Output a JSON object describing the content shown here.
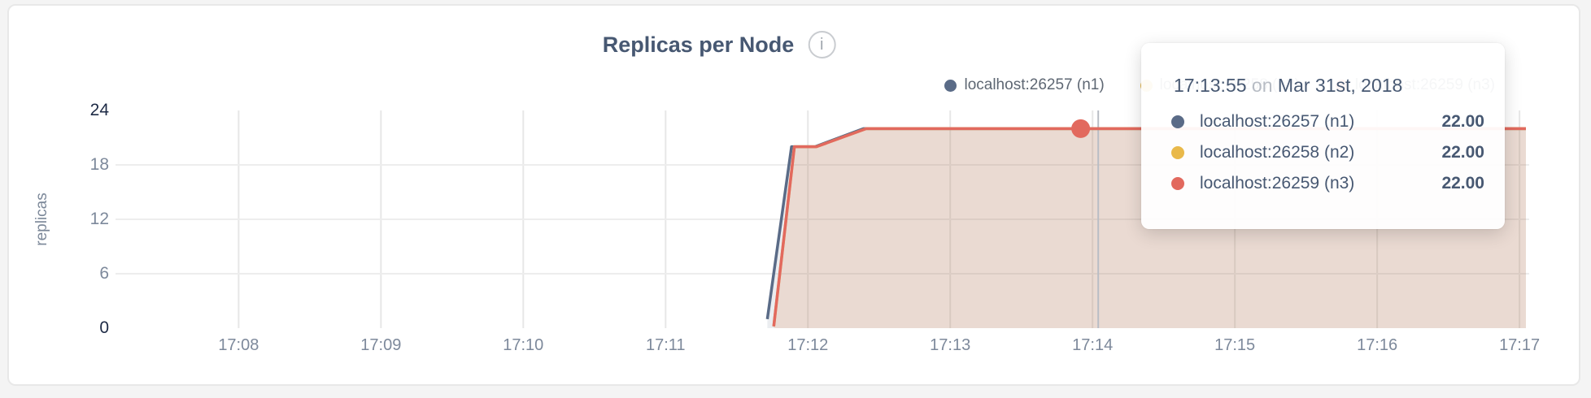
{
  "header": {
    "info_glyph": "i"
  },
  "chart_data": {
    "type": "area",
    "title": "Replicas per Node",
    "ylabel": "replicas",
    "ylim": [
      0,
      24
    ],
    "y_ticks": [
      0,
      6,
      12,
      18,
      24
    ],
    "xlim_minutes": [
      7.135,
      17.068
    ],
    "x_ticks": [
      {
        "minute": 8,
        "label": "17:08"
      },
      {
        "minute": 9,
        "label": "17:09"
      },
      {
        "minute": 10,
        "label": "17:10"
      },
      {
        "minute": 11,
        "label": "17:11"
      },
      {
        "minute": 12,
        "label": "17:12"
      },
      {
        "minute": 13,
        "label": "17:13"
      },
      {
        "minute": 14,
        "label": "17:14"
      },
      {
        "minute": 15,
        "label": "17:15"
      },
      {
        "minute": 16,
        "label": "17:16"
      },
      {
        "minute": 17,
        "label": "17:17"
      }
    ],
    "grid": true,
    "legend_position": "top-right",
    "series": [
      {
        "name": "localhost:26257 (n1)",
        "color": "#5a6b87",
        "points": [
          [
            11.715,
            1
          ],
          [
            11.885,
            20
          ],
          [
            12.05,
            20
          ],
          [
            12.39,
            22
          ],
          [
            17.045,
            22
          ]
        ]
      },
      {
        "name": "localhost:26258 (n2)",
        "color": "#e9b94a",
        "points": [
          [
            11.76,
            0.2
          ],
          [
            11.905,
            20
          ],
          [
            12.06,
            20
          ],
          [
            12.41,
            22
          ],
          [
            17.045,
            22
          ]
        ]
      },
      {
        "name": "localhost:26259 (n3)",
        "color": "#e2695e",
        "points": [
          [
            11.76,
            0.2
          ],
          [
            11.905,
            20
          ],
          [
            12.06,
            20
          ],
          [
            12.41,
            22
          ],
          [
            17.045,
            22
          ]
        ]
      }
    ],
    "hover": {
      "time_minute": 13.9167,
      "guideline_minute": 14.04,
      "dot_series_index": 2,
      "dot_value": 22
    }
  },
  "tooltip": {
    "time": "17:13:55",
    "preposition": "on",
    "date": "Mar 31st, 2018",
    "rows": [
      {
        "label": "localhost:26257 (n1)",
        "value": "22.00",
        "color": "#5a6b87"
      },
      {
        "label": "localhost:26258 (n2)",
        "value": "22.00",
        "color": "#e9b94a"
      },
      {
        "label": "localhost:26259 (n3)",
        "value": "22.00",
        "color": "#e2695e"
      }
    ]
  }
}
